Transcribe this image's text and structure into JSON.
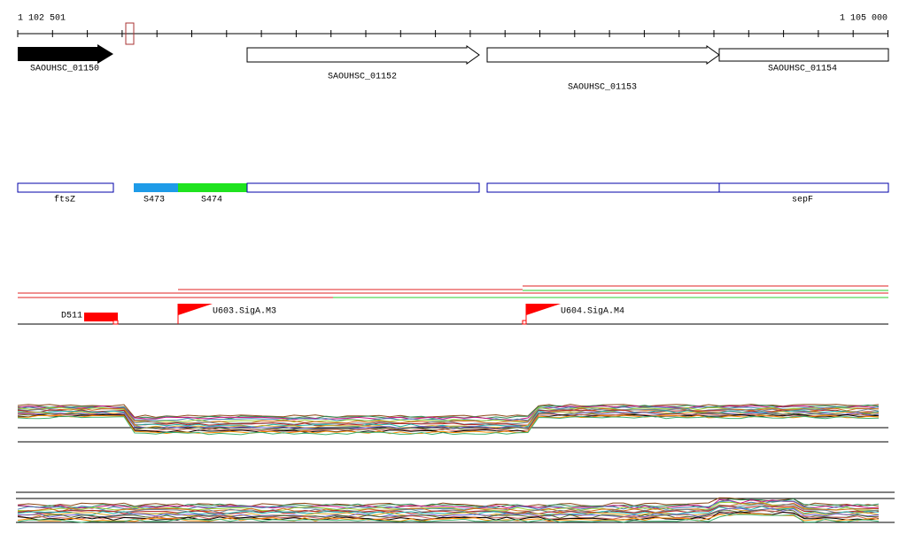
{
  "ruler": {
    "start": "1 102 501",
    "end": "1 105 000"
  },
  "genes": [
    {
      "label": "SAOUHSC_01150"
    },
    {
      "label": "SAOUHSC_01152"
    },
    {
      "label": "SAOUHSC_01153"
    },
    {
      "label": "SAOUHSC_01154"
    }
  ],
  "transcripts": [
    {
      "label": "ftsZ"
    },
    {
      "label": "S473"
    },
    {
      "label": "S474"
    },
    {
      "label": "sepF"
    }
  ],
  "features": [
    {
      "label": "D511"
    },
    {
      "label": "U603.SigA.M3"
    },
    {
      "label": "U604.SigA.M4"
    }
  ]
}
